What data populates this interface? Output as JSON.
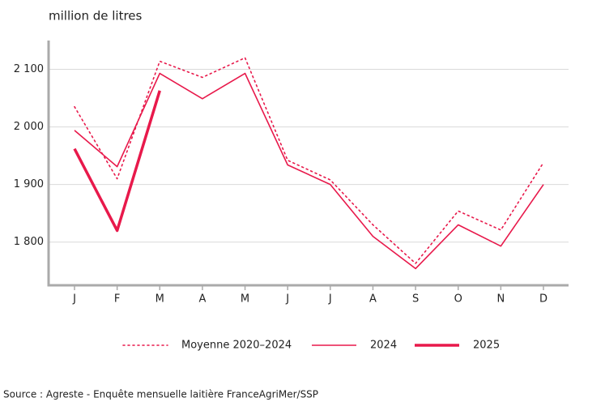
{
  "chart_data": {
    "type": "line",
    "title": "million de litres",
    "source": "Source : Agreste - Enquête mensuelle laitière FranceAgriMer/SSP",
    "categories": [
      "J",
      "F",
      "M",
      "A",
      "M",
      "J",
      "J",
      "A",
      "S",
      "O",
      "N",
      "D"
    ],
    "series": [
      {
        "name": "Moyenne 2020–2024",
        "color": "#e8194b",
        "line_style": "dotted",
        "line_width": 1.6,
        "values": [
          2035,
          1910,
          2114,
          2086,
          2120,
          1942,
          1908,
          1830,
          1763,
          1854,
          1821,
          1938
        ]
      },
      {
        "name": "2024",
        "color": "#e8194b",
        "line_style": "solid",
        "line_width": 1.6,
        "values": [
          1994,
          1931,
          2093,
          2049,
          2093,
          1934,
          1900,
          1810,
          1754,
          1830,
          1793,
          1900
        ]
      },
      {
        "name": "2025",
        "color": "#e8194b",
        "line_style": "solid",
        "line_width": 3.5,
        "values": [
          1962,
          1820,
          2063,
          null,
          null,
          null,
          null,
          null,
          null,
          null,
          null,
          null
        ]
      }
    ],
    "ylim": [
      1725,
      2150
    ],
    "yticks": [
      {
        "value": 1800,
        "label": "1 800"
      },
      {
        "value": 1900,
        "label": "1 900"
      },
      {
        "value": 2000,
        "label": "2 000"
      },
      {
        "value": 2100,
        "label": "2 100"
      }
    ],
    "grid": true,
    "legend": "bottom"
  }
}
